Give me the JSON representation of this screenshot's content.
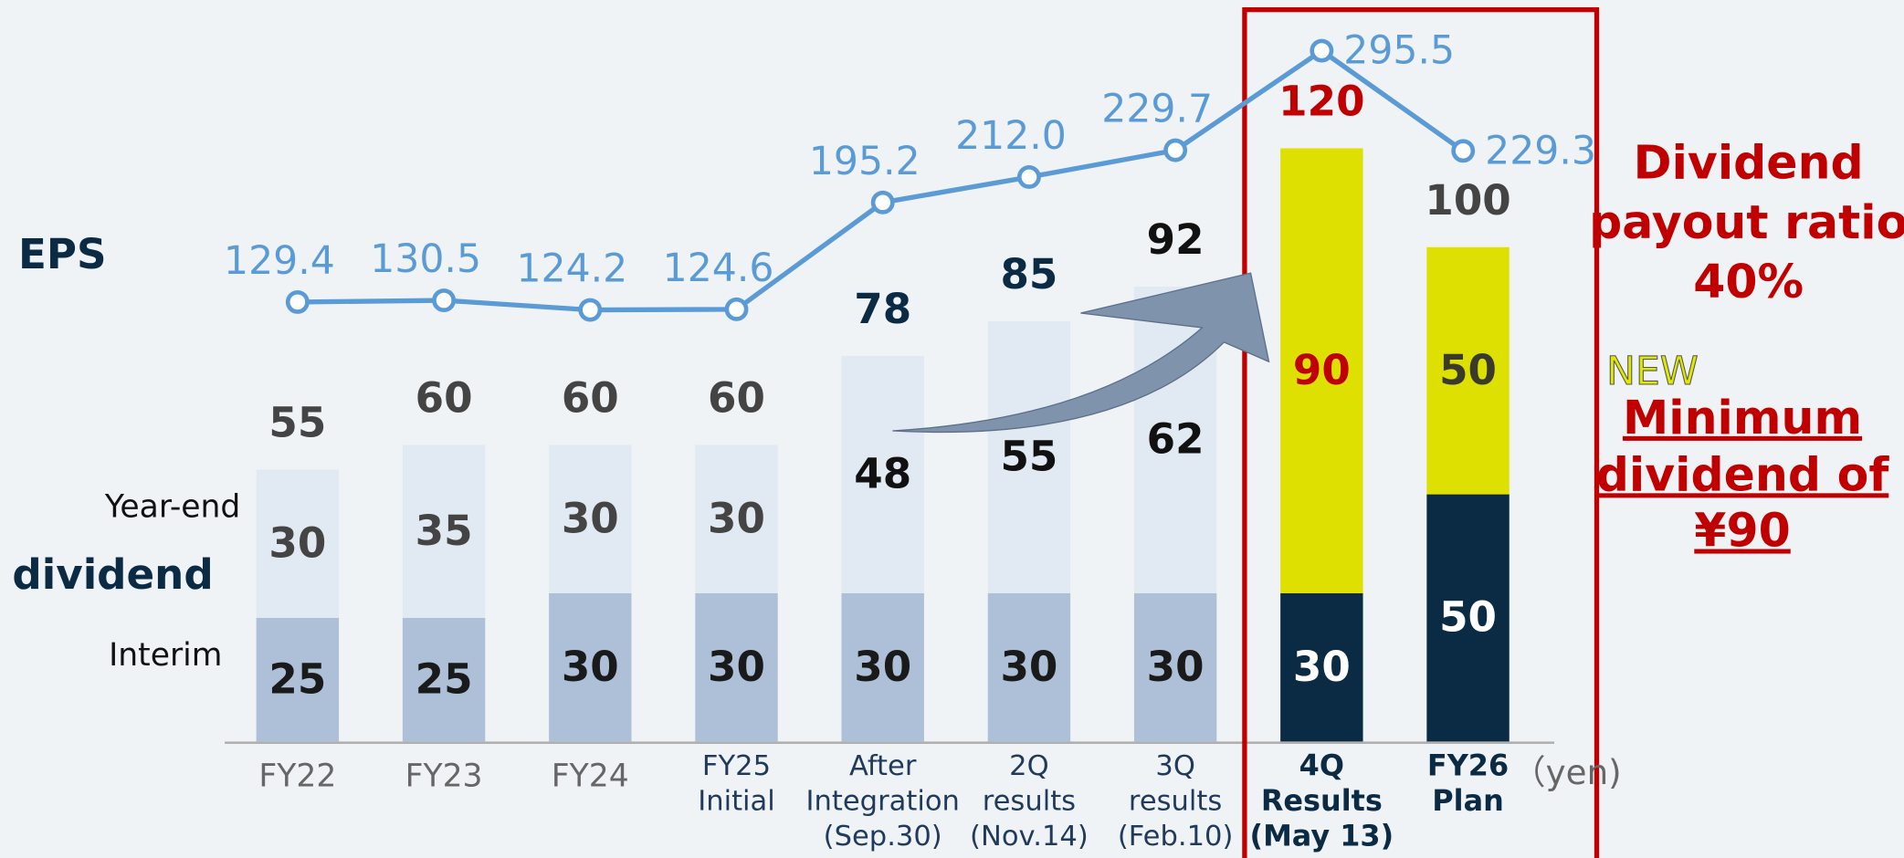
{
  "chart_data": {
    "type": "bar",
    "stacked": true,
    "categories": [
      [
        "FY22"
      ],
      [
        "FY23"
      ],
      [
        "FY24"
      ],
      [
        "FY25",
        "Initial"
      ],
      [
        "After",
        "Integration",
        "(Sep.30)"
      ],
      [
        "2Q",
        "results",
        "(Nov.14)"
      ],
      [
        "3Q",
        "results",
        "(Feb.10)"
      ],
      [
        "4Q",
        "Results",
        "(May 13)"
      ],
      [
        "FY26",
        "Plan"
      ]
    ],
    "ylim": [
      0,
      150
    ],
    "y2lim": [
      -161,
      329
    ],
    "series": [
      {
        "name": "Interim",
        "values": [
          25,
          25,
          30,
          30,
          30,
          30,
          30,
          30,
          50
        ],
        "color": [
          "#aec0d8",
          "#aec0d8",
          "#aec0d8",
          "#aec0d8",
          "#aec0d8",
          "#aec0d8",
          "#aec0d8",
          "#0b2b45",
          "#0b2b45"
        ],
        "label_color": [
          "#1a1a1a",
          "#1a1a1a",
          "#1a1a1a",
          "#1a1a1a",
          "#1a1a1a",
          "#1a1a1a",
          "#1a1a1a",
          "#ffffff",
          "#ffffff"
        ]
      },
      {
        "name": "Year-end",
        "values": [
          30,
          35,
          30,
          30,
          48,
          55,
          62,
          90,
          50
        ],
        "color": [
          "#e1e9f2",
          "#e1e9f2",
          "#e1e9f2",
          "#e1e9f2",
          "#e1e9f2",
          "#e1e9f2",
          "#e1e9f2",
          "#dde000",
          "#dde000"
        ],
        "label_color": [
          "#444444",
          "#444444",
          "#444444",
          "#444444",
          "#111111",
          "#111111",
          "#111111",
          "#c00000",
          "#3a3a2a"
        ]
      },
      {
        "name": "EPS",
        "type": "line",
        "axis": "y2",
        "color": "#5b9bd5",
        "values": [
          129.4,
          130.5,
          124.2,
          124.6,
          195.2,
          212.0,
          229.7,
          295.5,
          229.3
        ],
        "value_labels": [
          "129.4",
          "130.5",
          "124.2",
          "124.6",
          "195.2",
          "212.0",
          "229.7",
          "295.5",
          "229.3"
        ]
      }
    ],
    "totals": [
      55,
      60,
      60,
      60,
      78,
      85,
      92,
      120,
      100
    ],
    "total_colors": [
      "#444444",
      "#444444",
      "#444444",
      "#444444",
      "#0b2b45",
      "#0b2b45",
      "#111111",
      "#c00000",
      "#444444"
    ],
    "annotations": {
      "eps": "EPS",
      "dividend": "dividend",
      "unit": "（yen)",
      "payout": [
        "Dividend",
        "payout ratio",
        "40%"
      ],
      "new": "NEW",
      "minimum": [
        "Minimum",
        "dividend of",
        "¥90"
      ]
    }
  }
}
